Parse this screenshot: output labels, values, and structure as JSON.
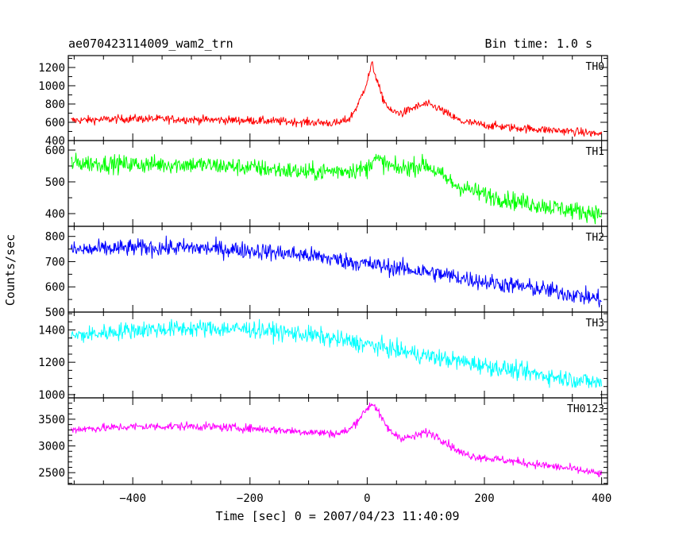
{
  "chart_data": {
    "type": "line",
    "title": "ae070423114009_wam2_trn",
    "bin_time": "Bin time: 1.0 s",
    "xlabel": "Time [sec] 0 = 2007/04/23 11:40:09",
    "ylabel": "Counts/sec",
    "xlim": [
      -510,
      410
    ],
    "x_ticks": [
      -400,
      -200,
      0,
      200,
      400
    ],
    "x_tick_labels": [
      "−400",
      "−200",
      "0",
      "200",
      "400"
    ],
    "x_minor_step": 50,
    "grid": false,
    "panels": [
      {
        "name": "TH0",
        "color": "#ff0000",
        "ylim": [
          400,
          1330
        ],
        "y_ticks": [
          400,
          600,
          800,
          1000,
          1200
        ],
        "y_tick_labels": [
          "400",
          "600",
          "800",
          "1000",
          "1200"
        ],
        "y_minor_step": 100,
        "noise": 32,
        "x": [
          -505,
          -400,
          -300,
          -200,
          -100,
          -50,
          -30,
          -15,
          0,
          8,
          15,
          25,
          40,
          60,
          80,
          100,
          120,
          140,
          160,
          180,
          200,
          250,
          300,
          350,
          400
        ],
        "values": [
          620,
          640,
          630,
          620,
          600,
          590,
          640,
          800,
          1050,
          1240,
          1100,
          880,
          720,
          700,
          760,
          800,
          760,
          680,
          610,
          590,
          570,
          540,
          520,
          500,
          470
        ]
      },
      {
        "name": "TH1",
        "color": "#00ff00",
        "ylim": [
          360,
          630
        ],
        "y_ticks": [
          400,
          500,
          600
        ],
        "y_tick_labels": [
          "400",
          "500",
          "600"
        ],
        "y_minor_step": 50,
        "noise": 20,
        "x": [
          -505,
          -400,
          -300,
          -200,
          -100,
          0,
          10,
          50,
          100,
          150,
          200,
          250,
          300,
          350,
          400
        ],
        "values": [
          560,
          555,
          555,
          545,
          530,
          540,
          575,
          540,
          555,
          490,
          460,
          440,
          425,
          410,
          400
        ]
      },
      {
        "name": "TH2",
        "color": "#0000ff",
        "ylim": [
          500,
          840
        ],
        "y_ticks": [
          500,
          600,
          700,
          800
        ],
        "y_tick_labels": [
          "500",
          "600",
          "700",
          "800"
        ],
        "y_minor_step": 50,
        "noise": 24,
        "x": [
          -505,
          -400,
          -300,
          -200,
          -100,
          0,
          100,
          200,
          300,
          400
        ],
        "values": [
          745,
          755,
          755,
          745,
          725,
          690,
          660,
          620,
          590,
          550
        ]
      },
      {
        "name": "TH3",
        "color": "#00ffff",
        "ylim": [
          980,
          1510
        ],
        "y_ticks": [
          1000,
          1200,
          1400
        ],
        "y_tick_labels": [
          "1000",
          "1200",
          "1400"
        ],
        "y_minor_step": 50,
        "noise": 38,
        "x": [
          -505,
          -400,
          -300,
          -200,
          -100,
          0,
          100,
          200,
          300,
          400
        ],
        "values": [
          1360,
          1400,
          1410,
          1405,
          1370,
          1310,
          1240,
          1180,
          1120,
          1070
        ]
      },
      {
        "name": "TH0123",
        "color": "#ff00ff",
        "ylim": [
          2280,
          3900
        ],
        "y_ticks": [
          2500,
          3000,
          3500
        ],
        "y_tick_labels": [
          "2500",
          "3000",
          "3500"
        ],
        "y_minor_step": 100,
        "noise": 55,
        "x": [
          -505,
          -400,
          -300,
          -200,
          -100,
          -50,
          -30,
          -15,
          0,
          8,
          15,
          25,
          40,
          60,
          80,
          100,
          120,
          140,
          160,
          180,
          200,
          250,
          300,
          350,
          400
        ],
        "values": [
          3310,
          3360,
          3370,
          3330,
          3260,
          3230,
          3300,
          3500,
          3700,
          3800,
          3720,
          3500,
          3260,
          3150,
          3170,
          3260,
          3180,
          3020,
          2870,
          2810,
          2780,
          2710,
          2640,
          2570,
          2470
        ]
      }
    ]
  }
}
